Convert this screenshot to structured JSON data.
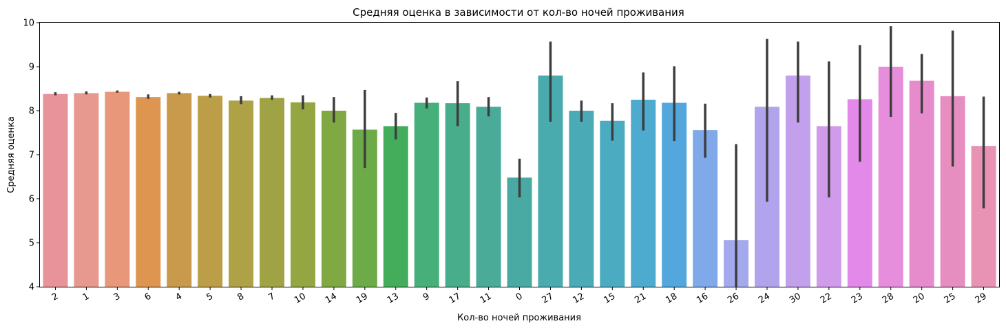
{
  "chart_data": {
    "type": "bar",
    "title": "Средняя оценка в зависимости от кол-во ночей проживания",
    "xlabel": "Кол-во ночей проживания",
    "ylabel": "Средняя оценка",
    "ylim": [
      4,
      10
    ],
    "yticks": [
      "4",
      "5",
      "6",
      "7",
      "8",
      "9",
      "10"
    ],
    "grid": false,
    "x_tick_rotation": "30 degrees",
    "categories": [
      "2",
      "1",
      "3",
      "6",
      "4",
      "5",
      "8",
      "7",
      "10",
      "14",
      "19",
      "13",
      "9",
      "17",
      "11",
      "0",
      "27",
      "12",
      "15",
      "21",
      "18",
      "16",
      "26",
      "24",
      "30",
      "22",
      "23",
      "28",
      "20",
      "25",
      "29"
    ],
    "values": [
      8.38,
      8.4,
      8.43,
      8.31,
      8.4,
      8.34,
      8.23,
      8.29,
      8.19,
      8.0,
      7.57,
      7.65,
      8.18,
      8.17,
      8.09,
      6.48,
      8.8,
      8.0,
      7.77,
      8.25,
      8.18,
      7.56,
      5.06,
      8.09,
      8.8,
      7.65,
      8.26,
      9.0,
      8.68,
      8.33,
      7.2
    ],
    "error_low": [
      8.35,
      8.37,
      8.41,
      8.27,
      8.37,
      8.3,
      8.15,
      8.25,
      8.03,
      7.73,
      6.7,
      7.35,
      8.05,
      7.65,
      7.87,
      6.03,
      7.75,
      7.75,
      7.32,
      7.55,
      7.31,
      6.93,
      4.0,
      5.93,
      7.73,
      6.03,
      6.84,
      7.86,
      7.94,
      6.73,
      5.78
    ],
    "error_high": [
      8.42,
      8.44,
      8.46,
      8.37,
      8.43,
      8.38,
      8.33,
      8.35,
      8.35,
      8.31,
      8.47,
      7.95,
      8.3,
      8.67,
      8.31,
      6.91,
      9.57,
      8.23,
      8.17,
      8.87,
      9.01,
      8.16,
      7.24,
      9.63,
      9.57,
      9.12,
      9.49,
      9.92,
      9.29,
      9.82,
      8.32
    ],
    "colors": [
      "#E8929A",
      "#E8998F",
      "#E8977A",
      "#DD9550",
      "#C99A4B",
      "#BC9E48",
      "#AEA146",
      "#A0A343",
      "#93A642",
      "#80A843",
      "#6DAB48",
      "#43AD5C",
      "#47AF7A",
      "#48AD8B",
      "#4AAB98",
      "#48AAA2",
      "#49ABAD",
      "#4AABB7",
      "#4BABC1",
      "#4DABD0",
      "#53A7DD",
      "#7FA9E9",
      "#A3A9EC",
      "#B2A4EC",
      "#C2A0EB",
      "#D19BEB",
      "#E389EA",
      "#E68EDB",
      "#E68CCD",
      "#E78EC0",
      "#E893B4"
    ]
  }
}
